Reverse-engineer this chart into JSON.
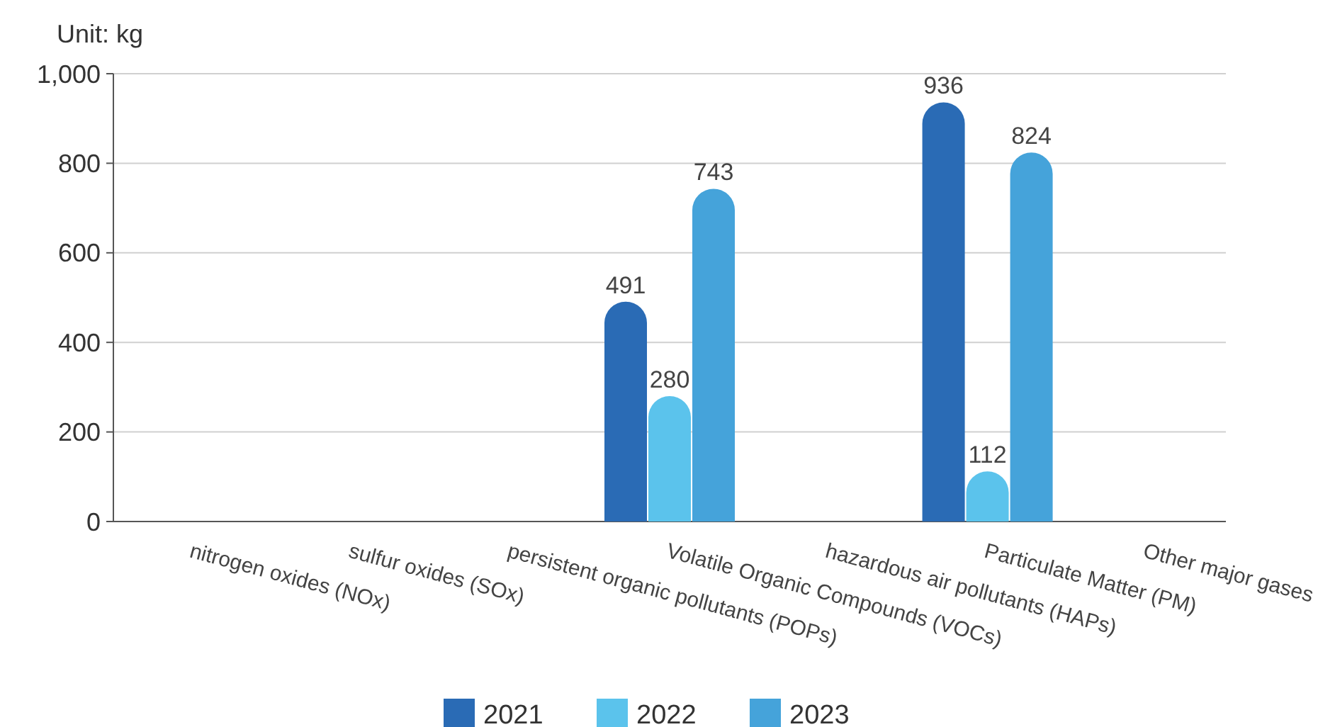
{
  "chart_data": {
    "type": "bar",
    "ylabel": "Unit: kg",
    "categories": [
      "nitrogen oxides (NOx)",
      "sulfur oxides (SOx)",
      "persistent organic pollutants (POPs)",
      "Volatile Organic Compounds (VOCs)",
      "hazardous air pollutants (HAPs)",
      "Particulate Matter (PM)",
      "Other major gases"
    ],
    "series": [
      {
        "name": "2021",
        "color": "#2a6bb5",
        "values": [
          null,
          null,
          null,
          491,
          null,
          936,
          null
        ]
      },
      {
        "name": "2022",
        "color": "#5bc3ec",
        "values": [
          null,
          null,
          null,
          280,
          null,
          112,
          null
        ]
      },
      {
        "name": "2023",
        "color": "#45a3da",
        "values": [
          null,
          null,
          null,
          743,
          null,
          824,
          null
        ]
      }
    ],
    "ylim": [
      0,
      1000
    ],
    "yticks": [
      0,
      200,
      400,
      600,
      800,
      {
        "value": 1000,
        "label": "1,000"
      }
    ],
    "grid": "y",
    "legend": "bottom",
    "data_labels": true
  }
}
